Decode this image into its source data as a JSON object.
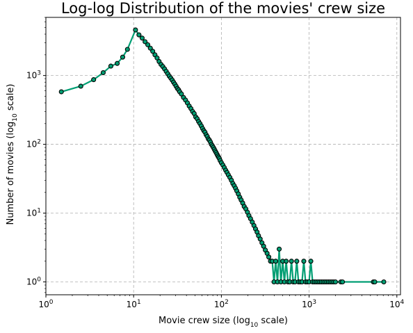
{
  "chart_data": {
    "type": "line",
    "title": "Log-log Distribution of the movies' crew size",
    "xlabel": "Movie crew size (log",
    "xlabel_sub": "10",
    "xlabel_tail": " scale)",
    "ylabel": "Number of movies (log",
    "ylabel_sub": "10",
    "ylabel_tail": " scale)",
    "xscale": "log",
    "yscale": "log",
    "xlim": [
      1,
      11000
    ],
    "ylim": [
      0.65,
      7000
    ],
    "grid": true,
    "line_color": "#009e73",
    "marker_face": "#009e73",
    "marker_edge": "#000000",
    "x_ticks": [
      {
        "value": 1,
        "base": "10",
        "exp": "0"
      },
      {
        "value": 10,
        "base": "10",
        "exp": "1"
      },
      {
        "value": 100,
        "base": "10",
        "exp": "2"
      },
      {
        "value": 1000,
        "base": "10",
        "exp": "3"
      },
      {
        "value": 10000,
        "base": "10",
        "exp": "4"
      }
    ],
    "y_ticks": [
      {
        "value": 1,
        "base": "10",
        "exp": "0"
      },
      {
        "value": 10,
        "base": "10",
        "exp": "1"
      },
      {
        "value": 100,
        "base": "10",
        "exp": "2"
      },
      {
        "value": 1000,
        "base": "10",
        "exp": "3"
      }
    ],
    "series": [
      {
        "points": [
          [
            1.5,
            580
          ],
          [
            2.5,
            700
          ],
          [
            3.5,
            870
          ],
          [
            4.5,
            1100
          ],
          [
            5.5,
            1370
          ],
          [
            6.5,
            1500
          ],
          [
            7.5,
            1850
          ],
          [
            8.5,
            2400
          ],
          [
            10.5,
            4600
          ],
          [
            11.5,
            3900
          ],
          [
            12.5,
            3500
          ],
          [
            13.5,
            3100
          ],
          [
            14.5,
            2800
          ],
          [
            15.5,
            2500
          ],
          [
            16.5,
            2250
          ],
          [
            17.5,
            2000
          ],
          [
            18.5,
            1800
          ],
          [
            19.5,
            1600
          ],
          [
            20.5,
            1450
          ],
          [
            21.5,
            1350
          ],
          [
            22.5,
            1250
          ],
          [
            23.5,
            1150
          ],
          [
            24.5,
            1060
          ],
          [
            25.5,
            980
          ],
          [
            26.5,
            920
          ],
          [
            27.5,
            860
          ],
          [
            28.5,
            800
          ],
          [
            29.5,
            750
          ],
          [
            30.5,
            700
          ],
          [
            31.5,
            650
          ],
          [
            32.5,
            620
          ],
          [
            33.5,
            580
          ],
          [
            35,
            540
          ],
          [
            37,
            480
          ],
          [
            39,
            440
          ],
          [
            41,
            400
          ],
          [
            43,
            360
          ],
          [
            45,
            330
          ],
          [
            47,
            300
          ],
          [
            49,
            280
          ],
          [
            51,
            250
          ],
          [
            53,
            235
          ],
          [
            55,
            215
          ],
          [
            57,
            200
          ],
          [
            59,
            185
          ],
          [
            61,
            170
          ],
          [
            63,
            158
          ],
          [
            65,
            150
          ],
          [
            67,
            138
          ],
          [
            69,
            130
          ],
          [
            71,
            120
          ],
          [
            73,
            115
          ],
          [
            75,
            108
          ],
          [
            77,
            100
          ],
          [
            79,
            95
          ],
          [
            81,
            90
          ],
          [
            83,
            85
          ],
          [
            85,
            80
          ],
          [
            87,
            76
          ],
          [
            89,
            72
          ],
          [
            91,
            68
          ],
          [
            93,
            65
          ],
          [
            95,
            62
          ],
          [
            97,
            58
          ],
          [
            100,
            54
          ],
          [
            104,
            50
          ],
          [
            108,
            46
          ],
          [
            112,
            42
          ],
          [
            116,
            39
          ],
          [
            120,
            36
          ],
          [
            125,
            33
          ],
          [
            130,
            30
          ],
          [
            135,
            27
          ],
          [
            140,
            25
          ],
          [
            145,
            23
          ],
          [
            150,
            21
          ],
          [
            156,
            19
          ],
          [
            162,
            17
          ],
          [
            168,
            15.5
          ],
          [
            175,
            14
          ],
          [
            182,
            12.5
          ],
          [
            190,
            11.5
          ],
          [
            198,
            10.3
          ],
          [
            206,
            9.2
          ],
          [
            215,
            8.3
          ],
          [
            225,
            7.4
          ],
          [
            235,
            6.6
          ],
          [
            245,
            5.9
          ],
          [
            255,
            5.3
          ],
          [
            265,
            4.7
          ],
          [
            277,
            4.2
          ],
          [
            290,
            3.7
          ],
          [
            303,
            3.3
          ],
          [
            317,
            2.9
          ],
          [
            332,
            2.6
          ],
          [
            347,
            2.3
          ],
          [
            363,
            2.0
          ],
          [
            380,
            2.0
          ],
          [
            398,
            1.0
          ],
          [
            416,
            2.0
          ],
          [
            436,
            1.0
          ],
          [
            456,
            3.0
          ],
          [
            477,
            1.0
          ],
          [
            500,
            2.0
          ],
          [
            523,
            1.0
          ],
          [
            548,
            2.0
          ],
          [
            574,
            1.0
          ],
          [
            601,
            1.0
          ],
          [
            629,
            2.0
          ],
          [
            659,
            1.0
          ],
          [
            690,
            1.0
          ],
          [
            723,
            2.0
          ],
          [
            757,
            1.0
          ],
          [
            793,
            1.0
          ],
          [
            830,
            1.0
          ],
          [
            870,
            2.0
          ],
          [
            911,
            1.0
          ],
          [
            954,
            1.0
          ],
          [
            999,
            1.0
          ],
          [
            1046,
            2.0
          ],
          [
            1096,
            1.0
          ],
          [
            1148,
            1.0
          ],
          [
            1202,
            1.0
          ],
          [
            1259,
            1.0
          ],
          [
            1318,
            1.0
          ],
          [
            1380,
            1.0
          ],
          [
            1446,
            1.0
          ],
          [
            1514,
            1.0
          ],
          [
            1585,
            1.0
          ],
          [
            1660,
            1.0
          ],
          [
            1738,
            1.0
          ],
          [
            1820,
            1.0
          ],
          [
            1906,
            1.0
          ],
          [
            1996,
            1.0
          ],
          [
            2300,
            1.0
          ],
          [
            2400,
            1.0
          ],
          [
            5400,
            1.0
          ],
          [
            5600,
            1.0
          ],
          [
            7100,
            1.0
          ]
        ]
      }
    ]
  }
}
